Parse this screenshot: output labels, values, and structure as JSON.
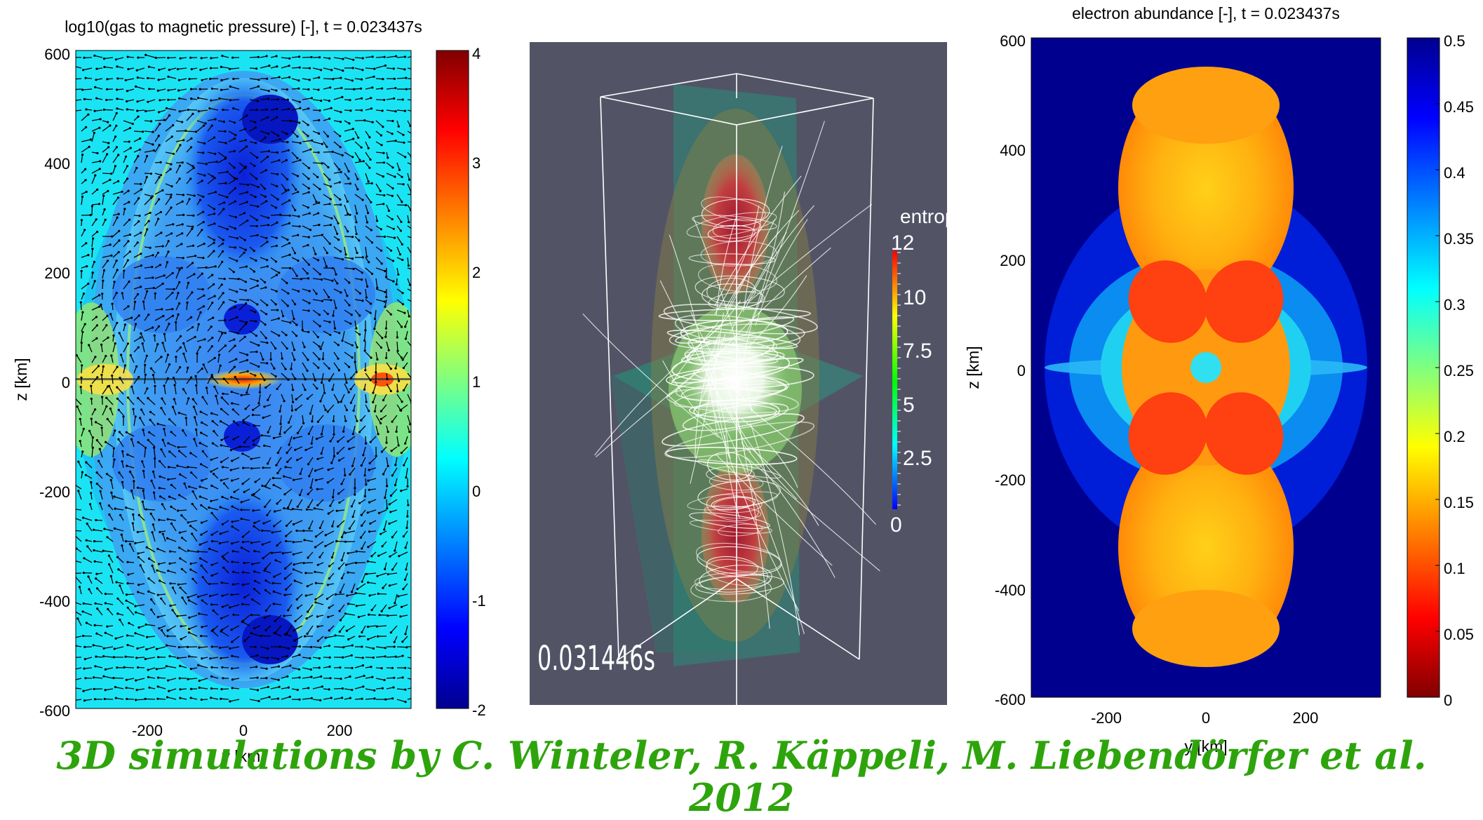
{
  "caption": "3D simulations by C. Winteler, R. Käppeli, M. Liebendörfer et al. 2012",
  "colors": {
    "caption": "#2ea40c",
    "panel_background": "#525466",
    "jet_colormap": [
      "#00008f",
      "#0000ff",
      "#00ffff",
      "#ffff00",
      "#ff0000",
      "#800000"
    ],
    "entropy_colormap": [
      "#0000ff",
      "#00ffff",
      "#00ff00",
      "#ffff00",
      "#ff0000"
    ]
  },
  "chart_data": [
    {
      "type": "heatmap",
      "title": "log10(gas to magnetic pressure) [-], t = 0.023437s",
      "xlabel": "y [km]",
      "ylabel": "z [km]",
      "xlim": [
        -350,
        350
      ],
      "ylim": [
        -600,
        600
      ],
      "x_ticks": [
        -200,
        0,
        200
      ],
      "y_ticks": [
        600,
        400,
        200,
        0,
        -200,
        -400,
        -600
      ],
      "colorbar": {
        "range": [
          -2,
          4
        ],
        "ticks": [
          4,
          3,
          2,
          1,
          0,
          -1,
          -2
        ],
        "colormap": "jet"
      },
      "overlay": "velocity vector field (arrows)",
      "grid": false
    },
    {
      "type": "other",
      "description_label": "3D volume rendering with magnetic field lines",
      "time_label": "0.031446s",
      "colorbar": {
        "title": "entrop",
        "range": [
          0,
          12
        ],
        "ticks": [
          "12",
          "10",
          "7.5",
          "5",
          "2.5",
          "0"
        ]
      }
    },
    {
      "type": "heatmap",
      "title": "electron abundance [-], t = 0.023437s",
      "xlabel": "y [km]",
      "ylabel": "z [km]",
      "xlim": [
        -350,
        350
      ],
      "ylim": [
        -600,
        600
      ],
      "x_ticks": [
        -200,
        0,
        200
      ],
      "y_ticks": [
        600,
        400,
        200,
        0,
        -200,
        -400,
        -600
      ],
      "colorbar": {
        "range": [
          0,
          0.5
        ],
        "ticks": [
          0.5,
          0.45,
          0.4,
          0.35,
          0.3,
          0.25,
          0.2,
          0.15,
          0.1,
          0.05,
          0
        ],
        "colormap": "jet reversed"
      },
      "grid": false
    }
  ]
}
